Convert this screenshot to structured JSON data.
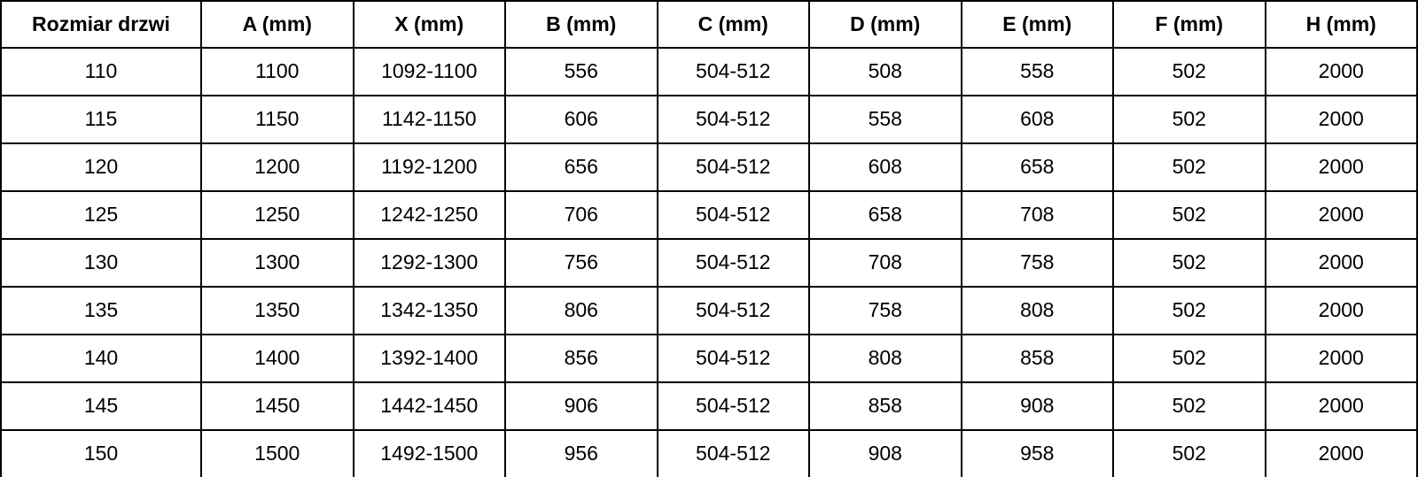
{
  "colors": {
    "border": "#000000",
    "text": "#000000",
    "background": "#ffffff"
  },
  "table": {
    "headers": [
      "Rozmiar drzwi",
      "A (mm)",
      "X (mm)",
      "B (mm)",
      "C (mm)",
      "D (mm)",
      "E (mm)",
      "F (mm)",
      "H (mm)"
    ],
    "rows": [
      [
        "110",
        "1100",
        "1092-1100",
        "556",
        "504-512",
        "508",
        "558",
        "502",
        "2000"
      ],
      [
        "115",
        "1150",
        "1142-1150",
        "606",
        "504-512",
        "558",
        "608",
        "502",
        "2000"
      ],
      [
        "120",
        "1200",
        "1192-1200",
        "656",
        "504-512",
        "608",
        "658",
        "502",
        "2000"
      ],
      [
        "125",
        "1250",
        "1242-1250",
        "706",
        "504-512",
        "658",
        "708",
        "502",
        "2000"
      ],
      [
        "130",
        "1300",
        "1292-1300",
        "756",
        "504-512",
        "708",
        "758",
        "502",
        "2000"
      ],
      [
        "135",
        "1350",
        "1342-1350",
        "806",
        "504-512",
        "758",
        "808",
        "502",
        "2000"
      ],
      [
        "140",
        "1400",
        "1392-1400",
        "856",
        "504-512",
        "808",
        "858",
        "502",
        "2000"
      ],
      [
        "145",
        "1450",
        "1442-1450",
        "906",
        "504-512",
        "858",
        "908",
        "502",
        "2000"
      ],
      [
        "150",
        "1500",
        "1492-1500",
        "956",
        "504-512",
        "908",
        "958",
        "502",
        "2000"
      ]
    ]
  }
}
